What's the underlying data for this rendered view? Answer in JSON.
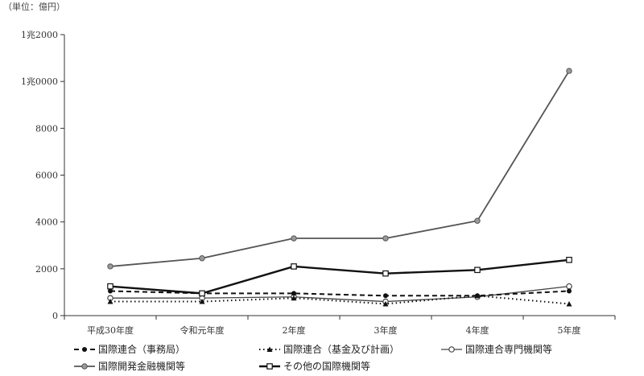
{
  "unit_label": "（単位：億円）",
  "chart_data": {
    "type": "line",
    "categories": [
      "平成30年度",
      "令和元年度",
      "2年度",
      "3年度",
      "4年度",
      "5年度"
    ],
    "ylim": [
      0,
      12000
    ],
    "yticks": [
      0,
      2000,
      4000,
      6000,
      8000,
      10000,
      12000
    ],
    "ytick_labels": [
      "0",
      "2000",
      "4000",
      "6000",
      "8000",
      "1兆0000",
      "1兆2000"
    ],
    "grid": false,
    "legend_position": "bottom",
    "series": [
      {
        "name": "国際連合（事務局）",
        "style": "dashed",
        "marker": "dot",
        "color": "#111111",
        "values": [
          1050,
          950,
          950,
          850,
          850,
          1050
        ]
      },
      {
        "name": "国際連合（基金及び計画）",
        "style": "dotted",
        "marker": "triangle",
        "color": "#111111",
        "values": [
          600,
          600,
          750,
          500,
          850,
          500
        ]
      },
      {
        "name": "国際連合専門機関等",
        "style": "solid-light",
        "marker": "open-circle",
        "color": "#444444",
        "values": [
          750,
          750,
          800,
          600,
          800,
          1250
        ]
      },
      {
        "name": "国際開発金融機関等",
        "style": "solid-gray",
        "marker": "gray-circle",
        "color": "#555555",
        "values": [
          2100,
          2450,
          3300,
          3300,
          4050,
          10450
        ]
      },
      {
        "name": "その他の国際機関等",
        "style": "solid-thick",
        "marker": "open-square",
        "color": "#111111",
        "values": [
          1250,
          950,
          2100,
          1800,
          1950,
          2380
        ]
      }
    ]
  }
}
